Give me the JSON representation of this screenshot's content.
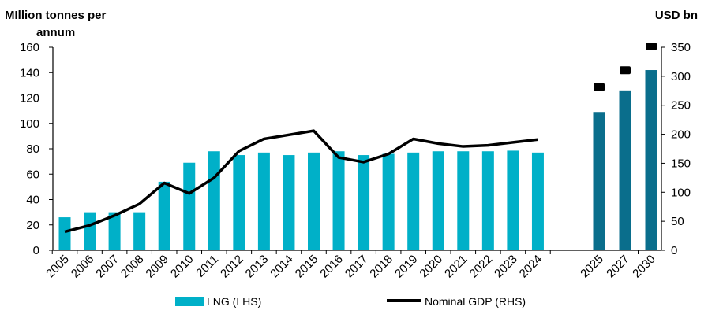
{
  "chart_data": {
    "type": "bar",
    "left_axis_title_line1": "MIllion tonnes per",
    "left_axis_title_line2": "annum",
    "right_axis_title": "USD bn",
    "ylim_left": [
      0,
      160
    ],
    "yticks_left": [
      0,
      20,
      40,
      60,
      80,
      100,
      120,
      140,
      160
    ],
    "ylim_right": [
      0,
      350
    ],
    "yticks_right": [
      0,
      50,
      100,
      150,
      200,
      250,
      300,
      350
    ],
    "categories": [
      "2005",
      "2006",
      "2007",
      "2008",
      "2009",
      "2010",
      "2011",
      "2012",
      "2013",
      "2014",
      "2015",
      "2016",
      "2017",
      "2018",
      "2019",
      "2020",
      "2021",
      "2022",
      "2023",
      "2024",
      "2025",
      "2027",
      "2030"
    ],
    "series": [
      {
        "name": "LNG (LHS)",
        "type": "bar",
        "axis": "left",
        "color": "#00B0C8",
        "forecast_color": "#0A6E8C",
        "values": [
          26,
          30,
          30,
          30,
          54,
          69,
          78,
          75,
          77,
          75,
          77,
          78,
          75,
          76,
          77,
          78,
          78,
          78,
          78.5,
          77,
          109,
          126,
          142
        ]
      },
      {
        "name": "Nominal GDP (RHS)",
        "type": "line",
        "axis": "right",
        "color": "#000000",
        "values": [
          32,
          43,
          60,
          80,
          116,
          98,
          125,
          171,
          192,
          199,
          206,
          160,
          152,
          166,
          192,
          184,
          179,
          181,
          186,
          191,
          null,
          null,
          null
        ],
        "forecast_markers": [
          null,
          null,
          null,
          null,
          null,
          null,
          null,
          null,
          null,
          null,
          null,
          null,
          null,
          null,
          null,
          null,
          null,
          null,
          null,
          null,
          280,
          309,
          350
        ]
      }
    ],
    "legend": {
      "placement": "bottom",
      "bar_label": "LNG (LHS)",
      "line_label": "Nominal GDP (RHS)"
    },
    "grid": false
  }
}
